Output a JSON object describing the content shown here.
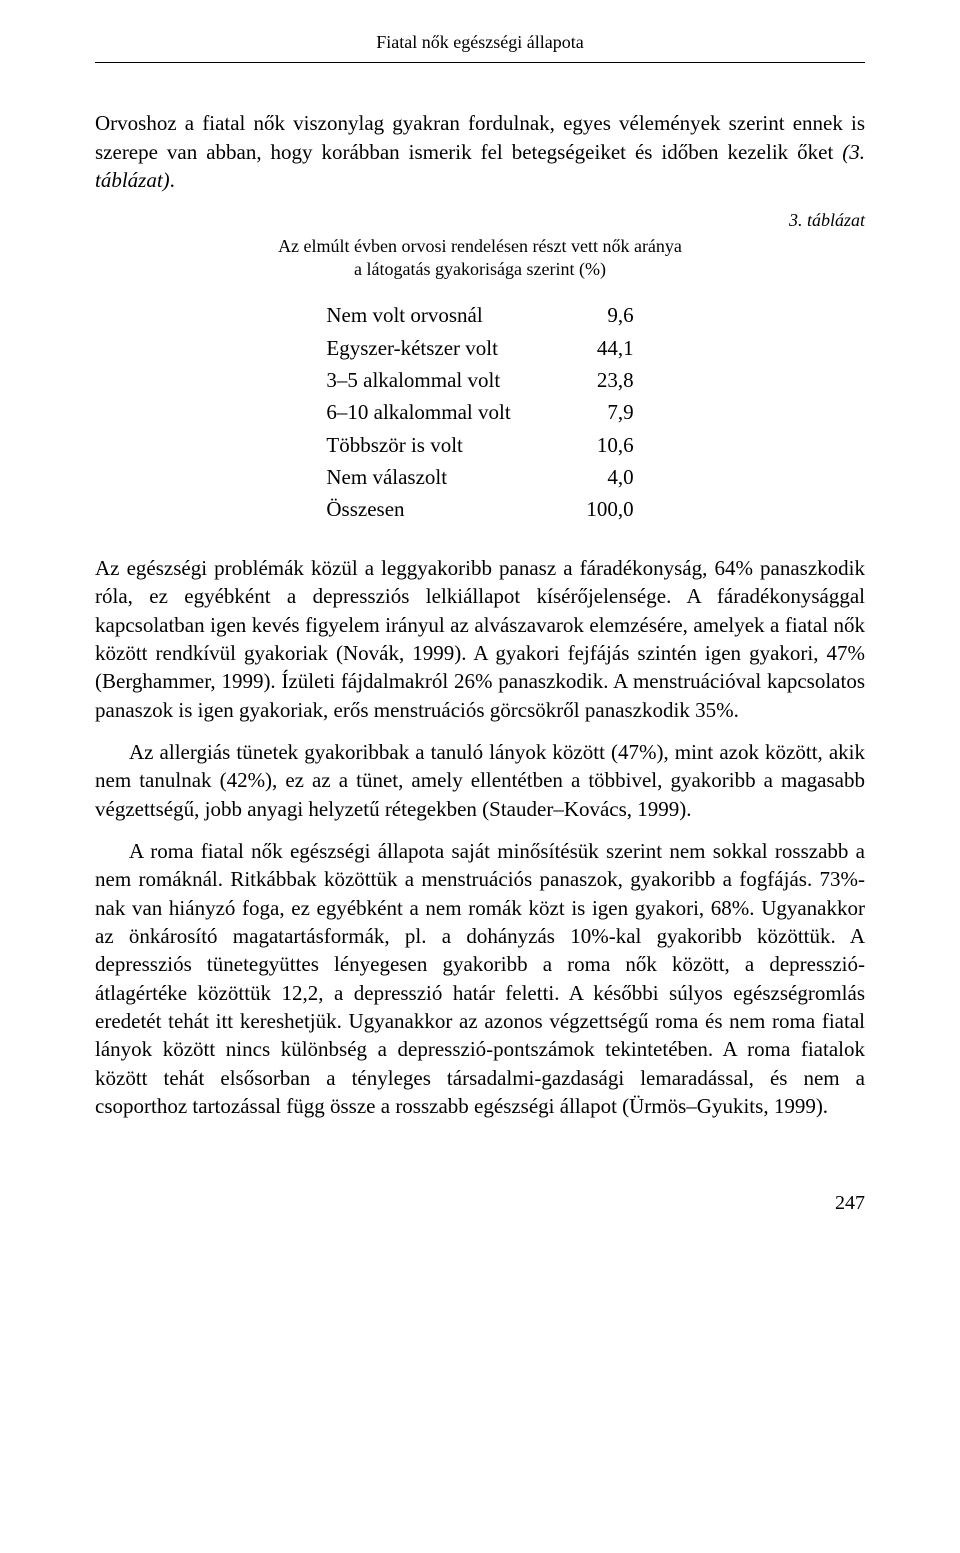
{
  "header": {
    "title": "Fiatal nők egészségi állapota"
  },
  "paragraphs": {
    "p1_a": "Orvoshoz a fiatal nők viszonylag gyakran fordulnak, egyes vélemények szerint ennek is szerepe van abban, hogy korábban ismerik fel betegségeiket és időben kezelik őket ",
    "p1_b": "(3. táblázat)",
    "p1_c": "."
  },
  "table": {
    "label": "3. táblázat",
    "subtitle_line1": "Az elmúlt évben orvosi rendelésen részt vett nők aránya",
    "subtitle_line2": "a látogatás gyakorisága szerint (%)",
    "rows": [
      {
        "label": "Nem volt orvosnál",
        "value": "9,6"
      },
      {
        "label": "Egyszer-kétszer volt",
        "value": "44,1"
      },
      {
        "label": "3–5 alkalommal volt",
        "value": "23,8"
      },
      {
        "label": "6–10 alkalommal volt",
        "value": "7,9"
      },
      {
        "label": "Többször is volt",
        "value": "10,6"
      },
      {
        "label": "Nem válaszolt",
        "value": "4,0"
      },
      {
        "label": "Összesen",
        "value": "100,0"
      }
    ]
  },
  "body": {
    "p2": "Az egészségi problémák közül a leggyakoribb panasz a fáradékonyság, 64% panaszkodik róla, ez egyébként a depressziós lelkiállapot kísérőjelensége. A fáradékonysággal kapcsolatban igen kevés figyelem irányul az alvászavarok elemzésére, amelyek a fiatal nők között rendkívül gyakoriak (Novák, 1999). A gyakori fejfájás szintén igen gyakori, 47% (Berghammer, 1999). Ízületi fájdalmakról 26% panaszkodik. A menstruációval kapcsolatos panaszok is igen gyakoriak, erős menstruációs görcsökről panaszkodik 35%.",
    "p3": "Az allergiás tünetek gyakoribbak a tanuló lányok között (47%), mint azok között, akik nem tanulnak (42%), ez az a tünet, amely ellentétben a többivel, gyakoribb a magasabb végzettségű, jobb anyagi helyzetű rétegekben (Stauder–Kovács, 1999).",
    "p4": "A roma fiatal nők egészségi állapota saját minősítésük szerint nem sokkal rosszabb a nem romáknál. Ritkábbak közöttük a menstruációs panaszok, gyakoribb a fogfájás. 73%-nak van hiányzó foga, ez egyébként a nem romák közt is igen gyakori, 68%. Ugyanakkor az önkárosító magatartásformák, pl. a dohányzás 10%-kal gyakoribb közöttük. A depressziós tünetegyüttes lényegesen gyakoribb a roma nők között, a depresszió-átlagértéke közöttük 12,2, a depresszió határ feletti. A későbbi súlyos egészségromlás eredetét tehát itt kereshetjük. Ugyanakkor az azonos végzettségű roma és nem roma fiatal lányok között nincs különbség a depresszió-pontszámok tekintetében. A roma fiatalok között tehát elsősorban a tényleges társadalmi-gazdasági lemaradással, és nem a csoporthoz tartozással függ össze a rosszabb egészségi állapot (Ürmös–Gyukits, 1999)."
  },
  "page_number": "247"
}
